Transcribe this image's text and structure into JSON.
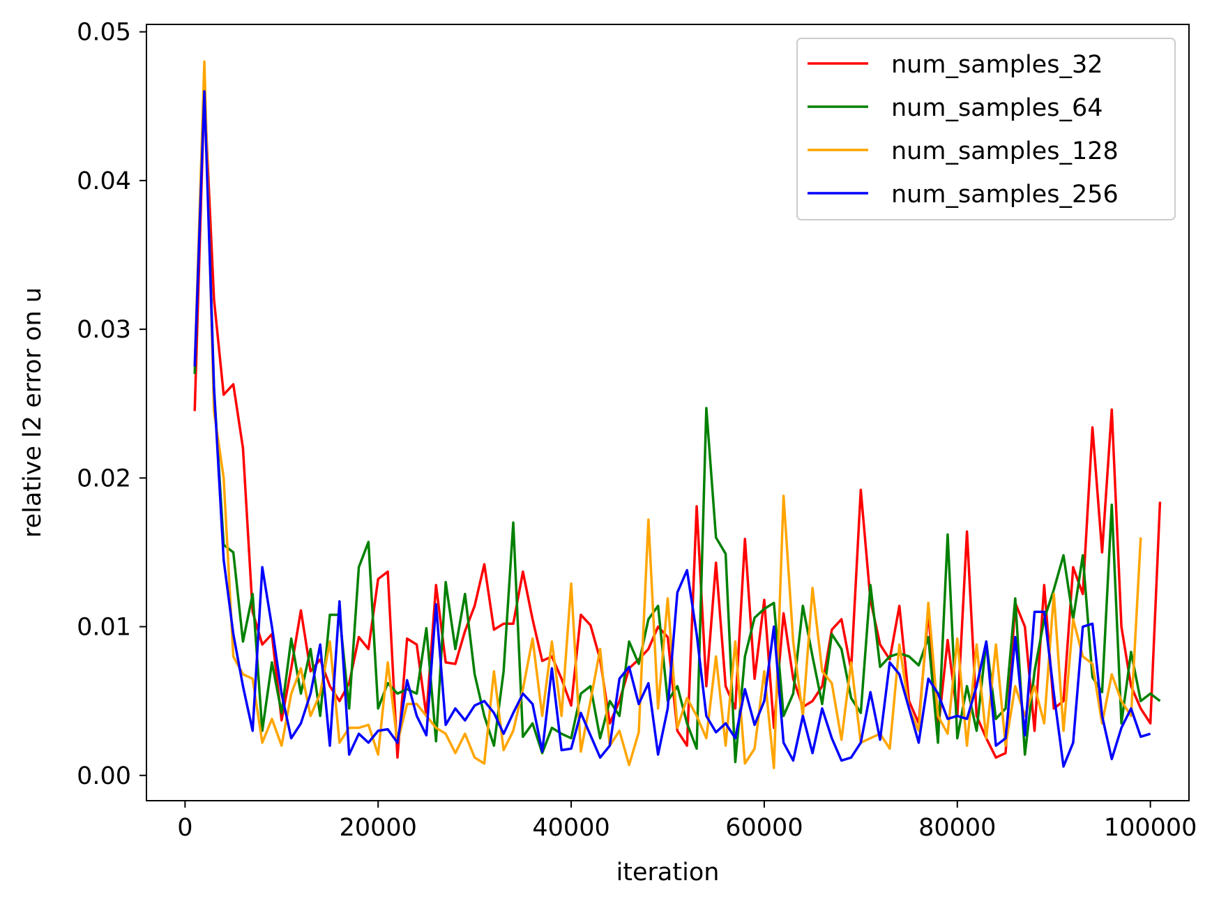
{
  "chart_data": {
    "type": "line",
    "title": "",
    "xlabel": "iteration",
    "ylabel": "relative l2 error on u",
    "xlim": [
      -4000,
      104000
    ],
    "ylim": [
      -0.0017,
      0.0505
    ],
    "xticks": [
      0,
      20000,
      40000,
      60000,
      80000,
      100000
    ],
    "xtick_labels": [
      "0",
      "20000",
      "40000",
      "60000",
      "80000",
      "100000"
    ],
    "yticks": [
      0.0,
      0.01,
      0.02,
      0.03,
      0.04,
      0.05
    ],
    "ytick_labels": [
      "0.00",
      "0.01",
      "0.02",
      "0.03",
      "0.04",
      "0.05"
    ],
    "grid": false,
    "legend": "top-right",
    "x_start": 1000,
    "x_step": 1000,
    "series": [
      {
        "name": "num_samples_32",
        "color": "#ff0000",
        "values": [
          0.0245,
          0.046,
          0.032,
          0.0256,
          0.0263,
          0.022,
          0.011,
          0.0088,
          0.0095,
          0.0037,
          0.0072,
          0.0111,
          0.007,
          0.0078,
          0.006,
          0.005,
          0.0062,
          0.0093,
          0.0085,
          0.0132,
          0.0137,
          0.0012,
          0.0092,
          0.0088,
          0.004,
          0.0128,
          0.0076,
          0.0075,
          0.0097,
          0.0114,
          0.0142,
          0.0098,
          0.0102,
          0.0102,
          0.0137,
          0.0105,
          0.0077,
          0.008,
          0.0065,
          0.0047,
          0.0108,
          0.0101,
          0.0078,
          0.0035,
          0.005,
          0.0072,
          0.0078,
          0.0085,
          0.01,
          0.0093,
          0.003,
          0.002,
          0.0181,
          0.006,
          0.0143,
          0.006,
          0.0045,
          0.0159,
          0.0065,
          0.0118,
          0.0032,
          0.0109,
          0.0065,
          0.0046,
          0.005,
          0.006,
          0.0098,
          0.0105,
          0.0071,
          0.0192,
          0.0118,
          0.0088,
          0.0078,
          0.0114,
          0.005,
          0.0035,
          0.011,
          0.003,
          0.0091,
          0.004,
          0.0164,
          0.004,
          0.0025,
          0.0012,
          0.0015,
          0.0116,
          0.01,
          0.003,
          0.0128,
          0.0045,
          0.005,
          0.014,
          0.0122,
          0.0234,
          0.015,
          0.0246,
          0.01,
          0.006,
          0.0045,
          0.0035,
          0.0184
        ]
      },
      {
        "name": "num_samples_64",
        "color": "#008000",
        "values": [
          0.027,
          0.047,
          0.026,
          0.0155,
          0.015,
          0.009,
          0.0122,
          0.003,
          0.0076,
          0.0042,
          0.0092,
          0.0055,
          0.0085,
          0.004,
          0.0108,
          0.0108,
          0.0045,
          0.014,
          0.0157,
          0.0045,
          0.0062,
          0.0055,
          0.0058,
          0.0055,
          0.0099,
          0.0023,
          0.013,
          0.0085,
          0.0122,
          0.0068,
          0.004,
          0.002,
          0.007,
          0.017,
          0.0026,
          0.0035,
          0.0015,
          0.0032,
          0.0028,
          0.0025,
          0.0055,
          0.006,
          0.0025,
          0.005,
          0.004,
          0.009,
          0.0075,
          0.0105,
          0.0114,
          0.005,
          0.006,
          0.0035,
          0.0018,
          0.0247,
          0.016,
          0.0149,
          0.0009,
          0.008,
          0.0106,
          0.0112,
          0.0116,
          0.004,
          0.0055,
          0.0114,
          0.008,
          0.0048,
          0.0095,
          0.0085,
          0.0052,
          0.0042,
          0.0128,
          0.0073,
          0.008,
          0.0082,
          0.008,
          0.0074,
          0.0093,
          0.0022,
          0.0162,
          0.0025,
          0.006,
          0.003,
          0.009,
          0.0038,
          0.0045,
          0.0119,
          0.0014,
          0.007,
          0.0105,
          0.0125,
          0.0148,
          0.0105,
          0.0148,
          0.0066,
          0.0056,
          0.0182,
          0.0035,
          0.0083,
          0.005,
          0.0055,
          0.005
        ]
      },
      {
        "name": "num_samples_128",
        "color": "#ffa500",
        "values": [
          0.0275,
          0.048,
          0.0245,
          0.02,
          0.008,
          0.0068,
          0.0065,
          0.0022,
          0.0038,
          0.002,
          0.0055,
          0.0072,
          0.004,
          0.0055,
          0.009,
          0.0022,
          0.0032,
          0.0032,
          0.0034,
          0.0014,
          0.0076,
          0.0022,
          0.0048,
          0.0048,
          0.004,
          0.0032,
          0.0028,
          0.0015,
          0.0028,
          0.0012,
          0.0008,
          0.007,
          0.0017,
          0.003,
          0.0058,
          0.0092,
          0.004,
          0.009,
          0.004,
          0.0129,
          0.0016,
          0.005,
          0.0085,
          0.002,
          0.003,
          0.0007,
          0.0029,
          0.0172,
          0.0045,
          0.0119,
          0.0032,
          0.0052,
          0.004,
          0.0025,
          0.008,
          0.002,
          0.009,
          0.0008,
          0.0018,
          0.007,
          0.0005,
          0.0188,
          0.009,
          0.004,
          0.0126,
          0.007,
          0.0062,
          0.0024,
          0.0076,
          0.0022,
          0.0025,
          0.0028,
          0.0018,
          0.0088,
          0.0045,
          0.003,
          0.0116,
          0.004,
          0.0028,
          0.0092,
          0.002,
          0.0088,
          0.0025,
          0.0088,
          0.002,
          0.006,
          0.004,
          0.006,
          0.0035,
          0.0122,
          0.003,
          0.0105,
          0.008,
          0.0075,
          0.0035,
          0.0068,
          0.005,
          0.004,
          0.016
        ]
      },
      {
        "name": "num_samples_256",
        "color": "#0000ff",
        "values": [
          0.0275,
          0.046,
          0.026,
          0.0145,
          0.0095,
          0.006,
          0.003,
          0.014,
          0.01,
          0.0055,
          0.0025,
          0.0035,
          0.0055,
          0.0088,
          0.002,
          0.0117,
          0.0014,
          0.0028,
          0.0022,
          0.003,
          0.0031,
          0.0022,
          0.0064,
          0.004,
          0.0027,
          0.0115,
          0.0034,
          0.0045,
          0.0037,
          0.0047,
          0.005,
          0.0042,
          0.0028,
          0.0042,
          0.0055,
          0.0048,
          0.0016,
          0.0072,
          0.0017,
          0.0018,
          0.0042,
          0.0027,
          0.0012,
          0.002,
          0.0065,
          0.0073,
          0.0048,
          0.0062,
          0.0014,
          0.0045,
          0.0123,
          0.0138,
          0.0095,
          0.004,
          0.0029,
          0.0035,
          0.0025,
          0.0058,
          0.0034,
          0.005,
          0.01,
          0.0022,
          0.001,
          0.004,
          0.0015,
          0.0045,
          0.0025,
          0.001,
          0.0012,
          0.0022,
          0.0056,
          0.0024,
          0.0076,
          0.0068,
          0.0045,
          0.0022,
          0.0065,
          0.0055,
          0.0038,
          0.004,
          0.0038,
          0.006,
          0.009,
          0.002,
          0.0025,
          0.0093,
          0.0027,
          0.011,
          0.011,
          0.0055,
          0.0006,
          0.0022,
          0.01,
          0.0102,
          0.004,
          0.0011,
          0.0032,
          0.0045,
          0.0026,
          0.0028
        ]
      }
    ]
  }
}
